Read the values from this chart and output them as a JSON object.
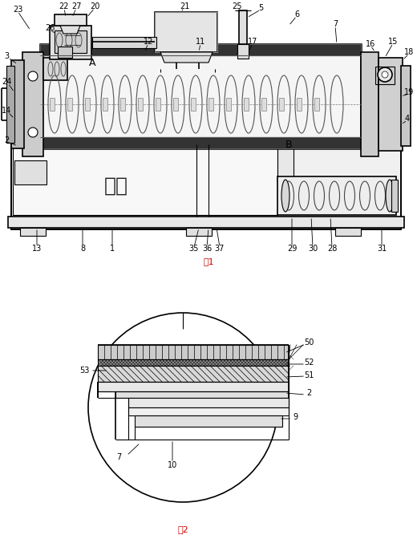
{
  "fig_width": 5.2,
  "fig_height": 6.82,
  "dpi": 100,
  "bg_color": "#ffffff",
  "line_color": "#000000",
  "fig1_caption": "图1",
  "fig2_caption": "图2",
  "water_box_text": "水箱",
  "label_A": "A",
  "label_B": "B"
}
